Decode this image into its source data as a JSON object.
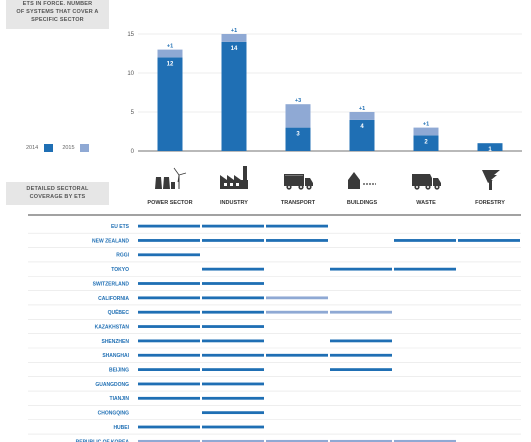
{
  "header": {
    "box1_lines": [
      "ETS IN FORCE. NUMBER",
      "OF SYSTEMS THAT COVER A",
      "SPECIFIC SECTOR"
    ],
    "box2_lines": [
      "DETAILED SECTORAL",
      "COVERAGE BY ETS"
    ]
  },
  "legend": {
    "label_2014": "2014",
    "label_2015": "2015"
  },
  "colors": {
    "y2014": "#1f6fb4",
    "y2015": "#8fa9d4",
    "grid": "#dddddd",
    "axis": "#444444",
    "icon": "#3a3a3a"
  },
  "chart_data": {
    "type": "bar",
    "stacked": true,
    "categories": [
      "POWER SECTOR",
      "INDUSTRY",
      "TRANSPORT",
      "BUILDINGS",
      "WASTE",
      "FORESTRY"
    ],
    "series": [
      {
        "name": "2014",
        "values": [
          12,
          14,
          3,
          4,
          2,
          1
        ]
      },
      {
        "name": "2015",
        "values": [
          1,
          1,
          3,
          1,
          1,
          0
        ]
      }
    ],
    "segment_labels_2014": [
      "12",
      "14",
      "3",
      "4",
      "2",
      "1"
    ],
    "segment_labels_2015": [
      "+1",
      "+1",
      "+3",
      "+1",
      "+1",
      ""
    ],
    "ylim": [
      0,
      15
    ],
    "yticks": [
      0,
      5,
      10,
      15
    ],
    "ytick_labels": [
      "0",
      "5",
      "10",
      "15"
    ],
    "grid": true,
    "icons": [
      "power-plant-icon",
      "factory-icon",
      "truck-icon",
      "house-icon",
      "garbage-truck-icon",
      "tree-icon"
    ]
  },
  "coverage": {
    "sectors": [
      "POWER SECTOR",
      "INDUSTRY",
      "TRANSPORT",
      "BUILDINGS",
      "WASTE",
      "FORESTRY"
    ],
    "rows": [
      {
        "name": "EU ETS",
        "cov": [
          1,
          1,
          1,
          0,
          0,
          0
        ]
      },
      {
        "name": "NEW ZEALAND",
        "cov": [
          1,
          1,
          1,
          0,
          1,
          1
        ]
      },
      {
        "name": "RGGI",
        "cov": [
          1,
          0,
          0,
          0,
          0,
          0
        ]
      },
      {
        "name": "TOKYO",
        "cov": [
          0,
          1,
          0,
          1,
          1,
          0
        ]
      },
      {
        "name": "SWITZERLAND",
        "cov": [
          1,
          1,
          0,
          0,
          0,
          0
        ]
      },
      {
        "name": "CALIFORNIA",
        "cov": [
          1,
          1,
          2,
          0,
          0,
          0
        ]
      },
      {
        "name": "QUÉBEC",
        "cov": [
          1,
          1,
          2,
          2,
          0,
          0
        ]
      },
      {
        "name": "KAZAKHSTAN",
        "cov": [
          1,
          1,
          0,
          0,
          0,
          0
        ]
      },
      {
        "name": "SHENZHEN",
        "cov": [
          1,
          1,
          0,
          1,
          0,
          0
        ]
      },
      {
        "name": "SHANGHAI",
        "cov": [
          1,
          1,
          1,
          1,
          0,
          0
        ]
      },
      {
        "name": "BEIJING",
        "cov": [
          1,
          1,
          0,
          1,
          0,
          0
        ]
      },
      {
        "name": "GUANGDONG",
        "cov": [
          1,
          1,
          0,
          0,
          0,
          0
        ]
      },
      {
        "name": "TIANJIN",
        "cov": [
          1,
          1,
          0,
          0,
          0,
          0
        ]
      },
      {
        "name": "CHONGQING",
        "cov": [
          0,
          1,
          0,
          0,
          0,
          0
        ]
      },
      {
        "name": "HUBEI",
        "cov": [
          1,
          1,
          0,
          0,
          0,
          0
        ]
      },
      {
        "name": "REPUBLIC OF KOREA",
        "cov": [
          2,
          2,
          2,
          2,
          2,
          0
        ]
      }
    ]
  }
}
